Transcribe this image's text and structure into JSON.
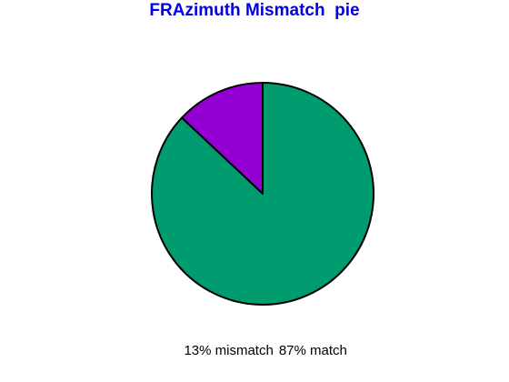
{
  "chart_data": {
    "type": "pie",
    "title": "FRAzimuth Mismatch  pie",
    "slices": [
      {
        "label": "13% mismatch",
        "value": 13,
        "color": "#9400d3"
      },
      {
        "label": "87% match",
        "value": 87,
        "color": "#009b6e"
      }
    ],
    "title_color": "#0000e6",
    "edge_color": "#000000"
  }
}
